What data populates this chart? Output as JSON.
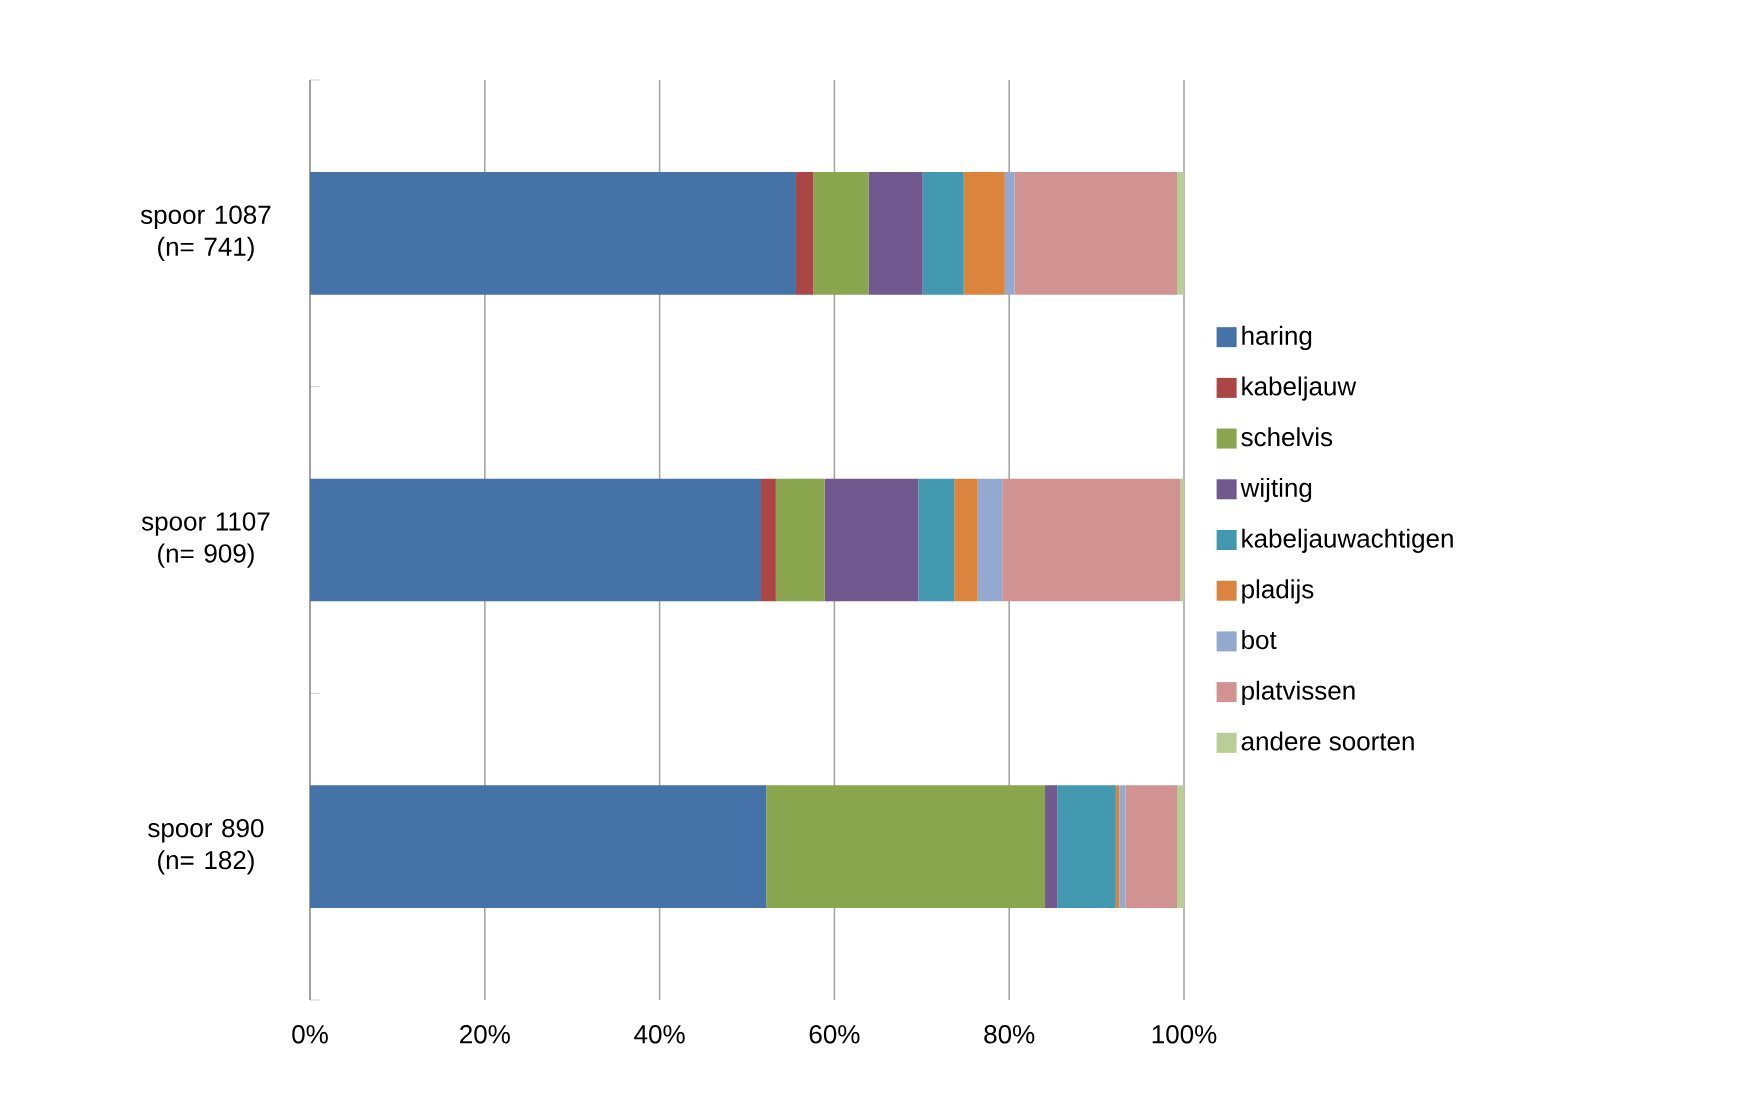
{
  "chart_data": {
    "type": "bar",
    "orientation": "horizontal",
    "stacked": true,
    "categories": [
      "spoor 1087 (n= 741)",
      "spoor 1107 (n= 909)",
      "spoor 890 (n= 182)"
    ],
    "series": [
      {
        "name": "haring",
        "color": "#4572a7",
        "values": [
          55.6,
          51.6,
          52.2
        ]
      },
      {
        "name": "kabeljauw",
        "color": "#aa4643",
        "values": [
          2.0,
          1.7,
          0
        ]
      },
      {
        "name": "schelvis",
        "color": "#89a54e",
        "values": [
          6.3,
          5.6,
          31.9
        ]
      },
      {
        "name": "wijting",
        "color": "#71588f",
        "values": [
          6.2,
          10.7,
          1.4
        ]
      },
      {
        "name": "kabeljauwachtigen",
        "color": "#4198af",
        "values": [
          4.7,
          4.1,
          6.7
        ]
      },
      {
        "name": "pladijs",
        "color": "#db843d",
        "values": [
          4.7,
          2.7,
          0.4
        ]
      },
      {
        "name": "bot",
        "color": "#93a9cf",
        "values": [
          1.1,
          2.8,
          0.7
        ]
      },
      {
        "name": "platvissen",
        "color": "#d19392",
        "values": [
          18.6,
          20.4,
          5.9
        ]
      },
      {
        "name": "andere soorten",
        "color": "#b9cd96",
        "values": [
          0.8,
          0.4,
          0.8
        ]
      }
    ],
    "xlim": [
      0,
      100
    ],
    "xticks": [
      {
        "value": 0,
        "label": "0%"
      },
      {
        "value": 20,
        "label": "20%"
      },
      {
        "value": 40,
        "label": "40%"
      },
      {
        "value": 60,
        "label": "60%"
      },
      {
        "value": 80,
        "label": "80%"
      },
      {
        "value": 100,
        "label": "100%"
      }
    ],
    "grid": "x",
    "legend": "right"
  }
}
